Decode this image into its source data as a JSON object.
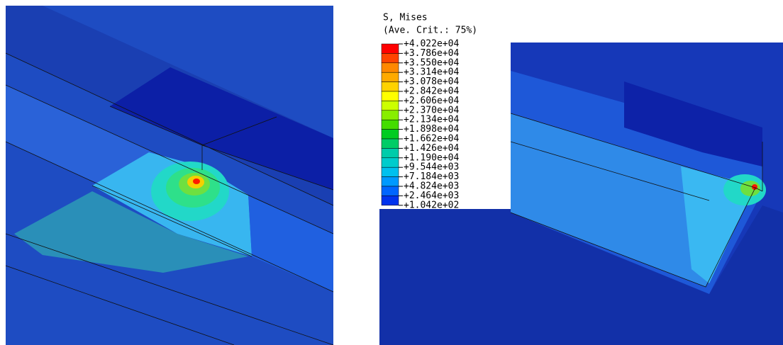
{
  "legend": {
    "title": "S, Mises",
    "subtitle": "(Ave. Crit.: 75%)",
    "labels": [
      "+4.022e+04",
      "+3.786e+04",
      "+3.550e+04",
      "+3.314e+04",
      "+3.078e+04",
      "+2.842e+04",
      "+2.606e+04",
      "+2.370e+04",
      "+2.134e+04",
      "+1.898e+04",
      "+1.662e+04",
      "+1.426e+04",
      "+1.190e+04",
      "+9.544e+03",
      "+7.184e+03",
      "+4.824e+03",
      "+2.464e+03",
      "+1.042e+02"
    ],
    "colors": [
      "#ff0000",
      "#ff4400",
      "#ff8800",
      "#ffaa00",
      "#ffd200",
      "#ffff00",
      "#ccff00",
      "#88ee00",
      "#44dd00",
      "#00cc22",
      "#00cc66",
      "#00ccaa",
      "#00cccc",
      "#00c0ee",
      "#0099ff",
      "#0066ff",
      "#0033ee"
    ]
  }
}
